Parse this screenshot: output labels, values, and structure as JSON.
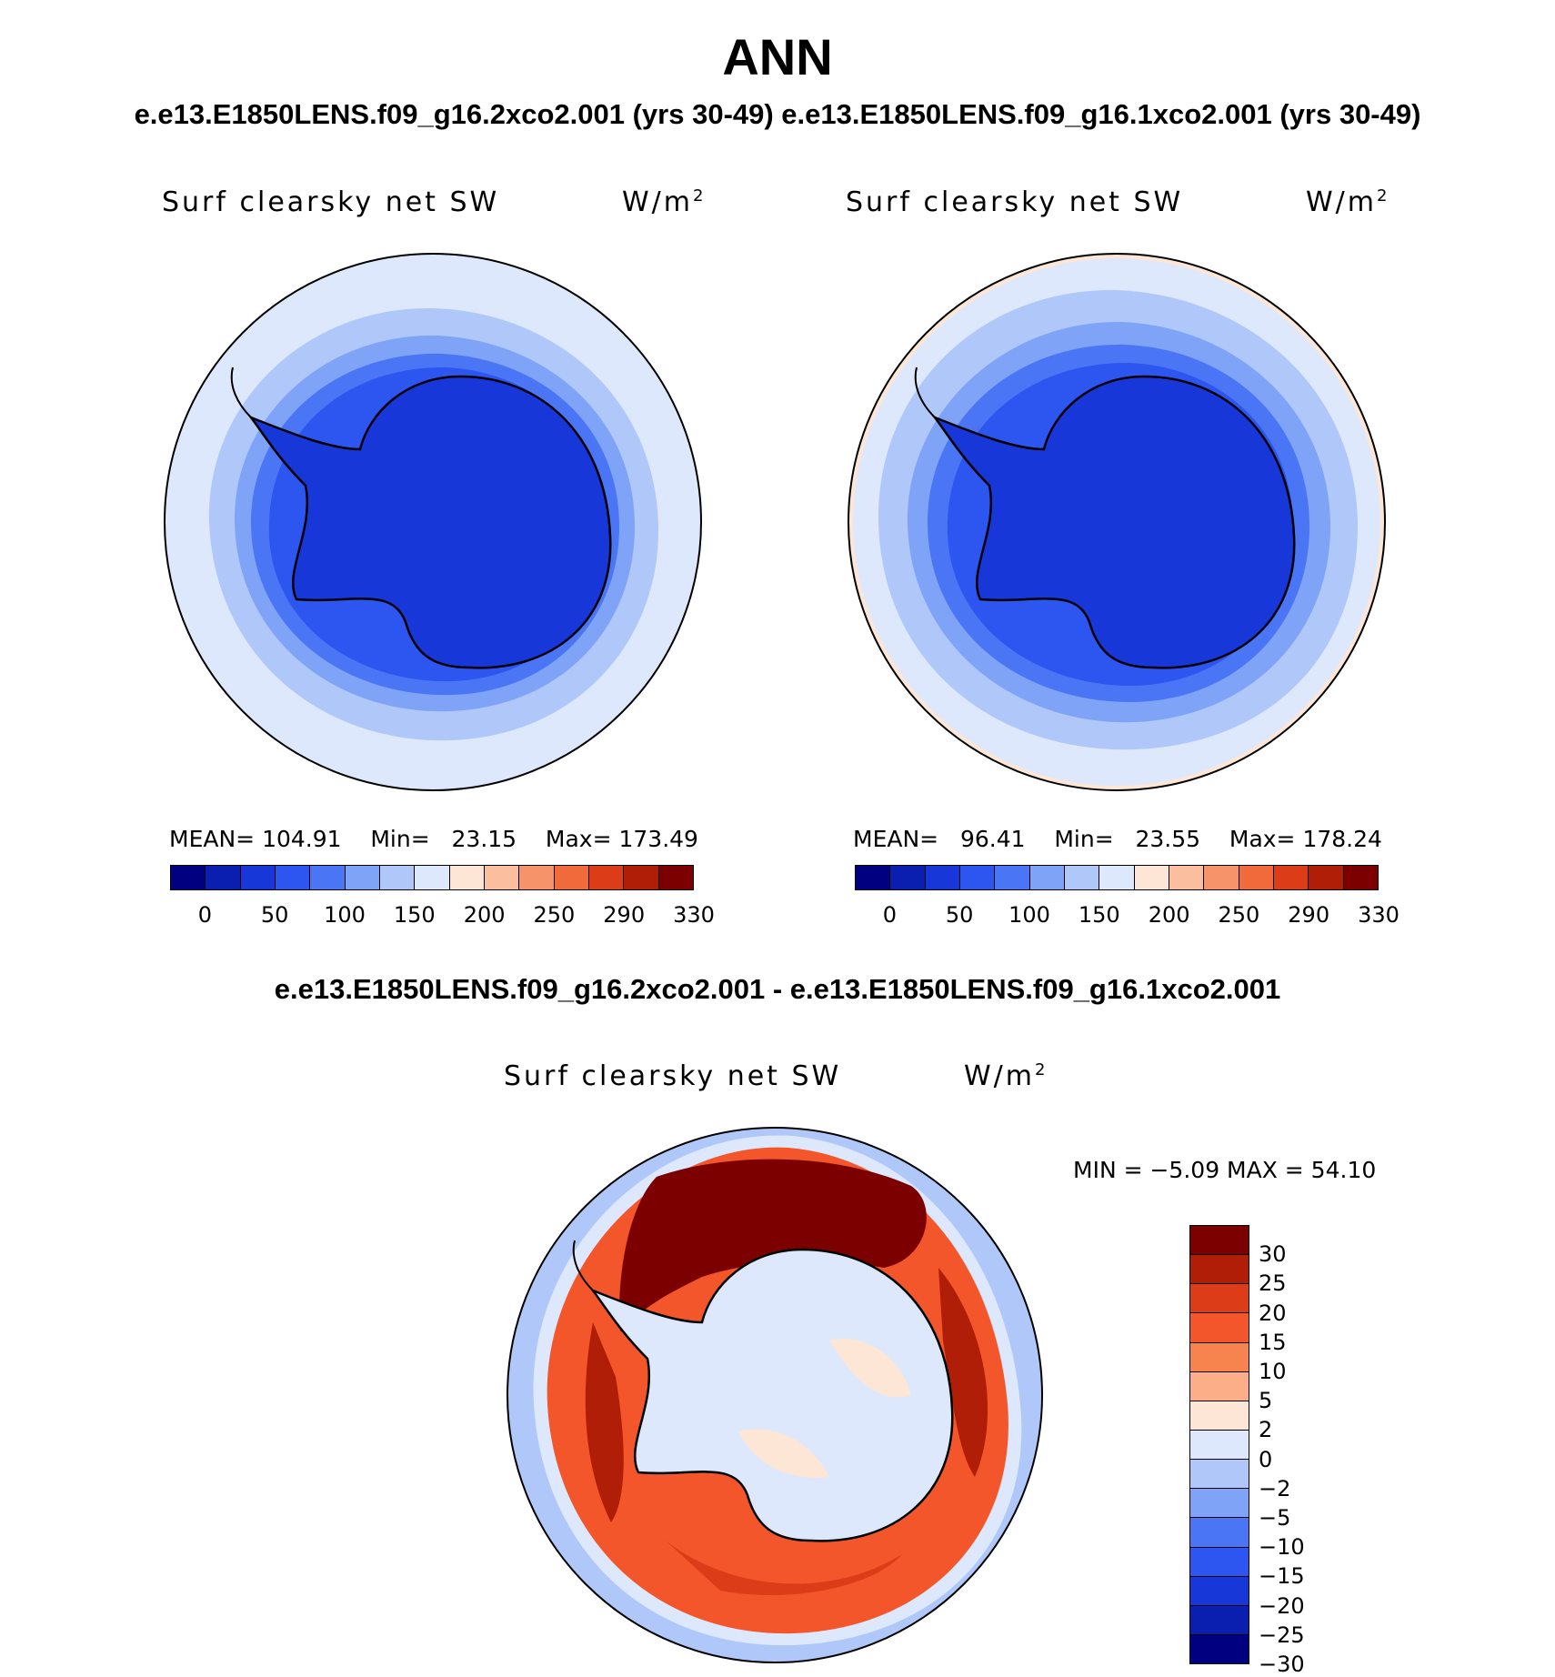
{
  "figure": {
    "season": "ANN",
    "top_subtitle": "e.e13.E1850LENS.f09_g16.2xco2.001 (yrs 30-49) e.e13.E1850LENS.f09_g16.1xco2.001 (yrs 30-49)",
    "diff_subtitle": "e.e13.E1850LENS.f09_g16.2xco2.001 - e.e13.E1850LENS.f09_g16.1xco2.001"
  },
  "panels": [
    {
      "variable": "Surf clearsky net SW",
      "units_base": "W/m",
      "units_exp": "2",
      "mean_label": "MEAN=",
      "mean": "104.91",
      "min_label": "Min=",
      "min": "23.15",
      "max_label": "Max=",
      "max": "173.49"
    },
    {
      "variable": "Surf clearsky net SW",
      "units_base": "W/m",
      "units_exp": "2",
      "mean_label": "MEAN=",
      "mean": "96.41",
      "min_label": "Min=",
      "min": "23.55",
      "max_label": "Max=",
      "max": "178.24"
    }
  ],
  "diff_panel": {
    "variable": "Surf clearsky net SW",
    "units_base": "W/m",
    "units_exp": "2",
    "stats_text": "MIN =   −5.09 MAX =   54.10"
  },
  "colorbar_main": {
    "colors": [
      "#000080",
      "#0a1fb0",
      "#1837d8",
      "#2d55f0",
      "#4a76f5",
      "#7fa3f7",
      "#b0c8f9",
      "#dde8fc",
      "#fde6d6",
      "#fbbfa0",
      "#f7936b",
      "#f16a3c",
      "#dc3d18",
      "#b01e08",
      "#7d0000"
    ],
    "labels": [
      "0",
      "50",
      "100",
      "150",
      "200",
      "250",
      "290",
      "330"
    ]
  },
  "colorbar_diff": {
    "colors_top_to_bottom": [
      "#7d0000",
      "#b01e08",
      "#dc3d18",
      "#f2562a",
      "#f7834f",
      "#fbae88",
      "#fde6d6",
      "#dde8fc",
      "#b0c8f9",
      "#7fa3f7",
      "#4a76f5",
      "#2d55f0",
      "#1837d8",
      "#0a1fb0",
      "#000080"
    ],
    "labels_top_to_bottom": [
      "30",
      "25",
      "20",
      "15",
      "10",
      "5",
      "2",
      "0",
      "−2",
      "−5",
      "−10",
      "−15",
      "−20",
      "−25",
      "−30"
    ]
  }
}
